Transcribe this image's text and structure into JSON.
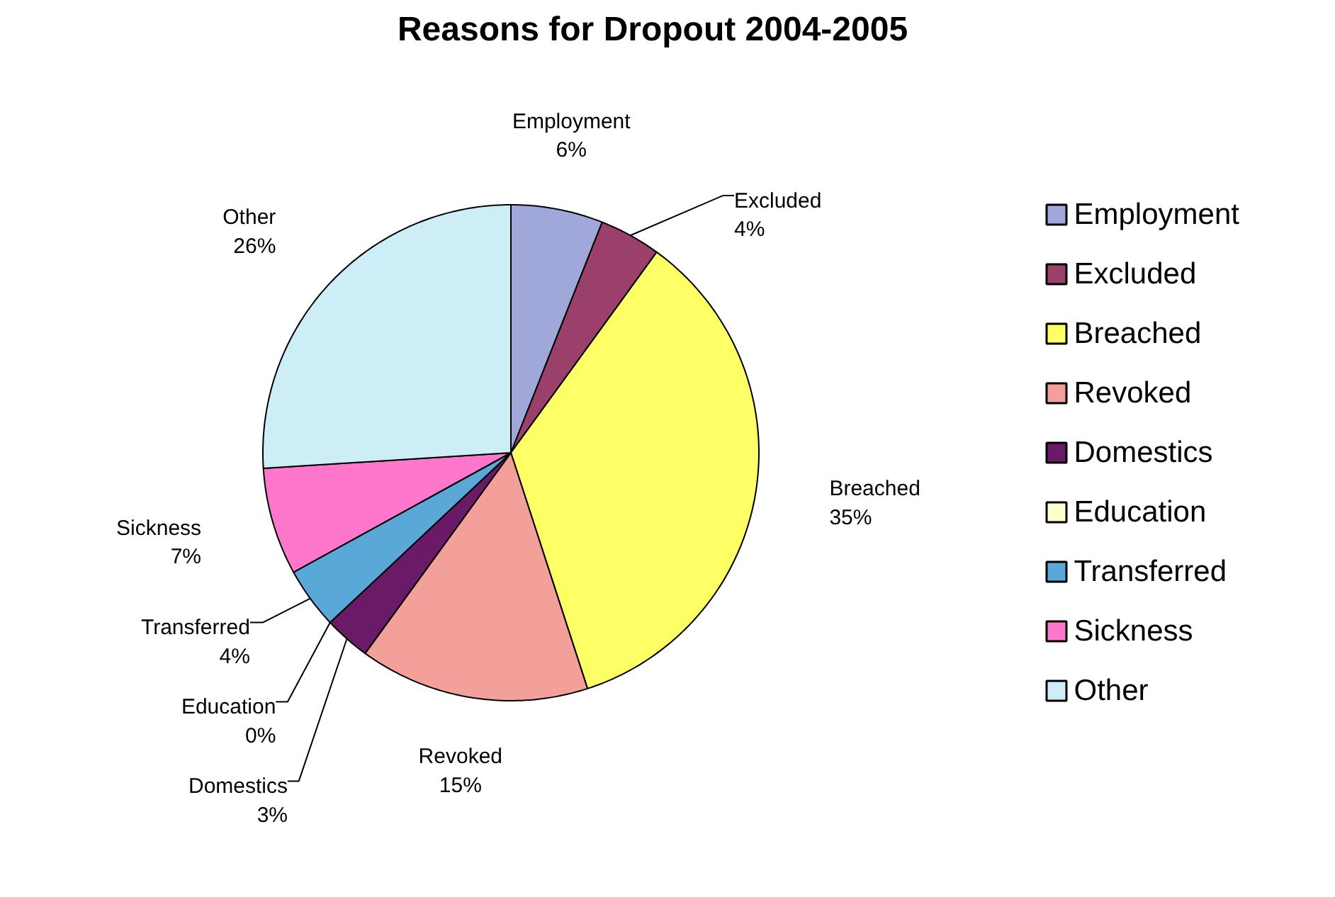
{
  "chart_data": {
    "type": "pie",
    "title": "Reasons for Dropout 2004-2005",
    "categories": [
      "Employment",
      "Excluded",
      "Breached",
      "Revoked",
      "Domestics",
      "Education",
      "Transferred",
      "Sickness",
      "Other"
    ],
    "values": [
      6,
      4,
      35,
      15,
      3,
      0,
      4,
      7,
      26
    ],
    "value_labels": [
      "6%",
      "4%",
      "35%",
      "15%",
      "3%",
      "0%",
      "4%",
      "7%",
      "26%"
    ],
    "colors": [
      "#9fa8d8",
      "#9b3f6b",
      "#ffff66",
      "#f4a09a",
      "#6a1a66",
      "#ffffcc",
      "#5aa8d8",
      "#ff77cc",
      "#cdeef7"
    ],
    "legend": "right"
  }
}
